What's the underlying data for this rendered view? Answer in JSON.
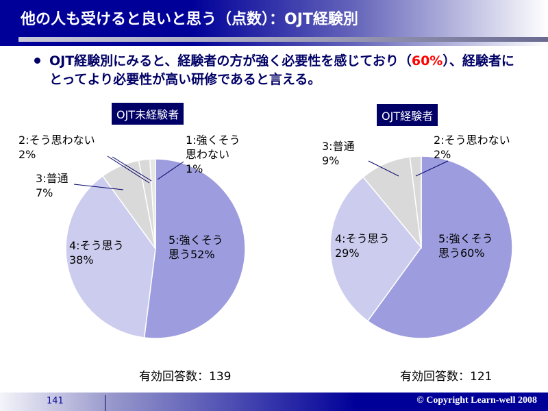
{
  "header": {
    "title": "他の人も受けると良いと思う（点数）：OJT経験別"
  },
  "summary": {
    "text_before": "OJT経験別にみると、経験者の方が強く必要性を感じており（",
    "highlight": "60%",
    "text_after": "）、経験者にとってより必要性が高い研修であると言える。",
    "highlight_color": "#ff0000"
  },
  "chart_data": [
    {
      "type": "pie",
      "title": "OJT未経験者",
      "start": "12 o'clock",
      "direction": "clockwise",
      "slices": [
        {
          "label": "5:強くそう思う",
          "value": 52,
          "text": "5:強くそう\n思う52%",
          "color": "#9c9cde"
        },
        {
          "label": "4:そう思う",
          "value": 38,
          "text": "4:そう思う\n38%",
          "color": "#ccccee"
        },
        {
          "label": "3:普通",
          "value": 7,
          "text": "3:普通\n7%",
          "color": "#d9d9d9"
        },
        {
          "label": "2:そう思わない",
          "value": 2,
          "text": "2:そう思わない\n2%",
          "color": "#d9d9d9"
        },
        {
          "label": "1:強くそう思わない",
          "value": 1,
          "text": "1:強くそう\n思わない\n1%",
          "color": "#e6e6e6"
        }
      ],
      "n_label": "有効回答数：139"
    },
    {
      "type": "pie",
      "title": "OJT経験者",
      "start": "12 o'clock",
      "direction": "clockwise",
      "slices": [
        {
          "label": "5:強くそう思う",
          "value": 60,
          "text": "5:強くそう\n思う60%",
          "color": "#9c9cde"
        },
        {
          "label": "4:そう思う",
          "value": 29,
          "text": "4:そう思う\n29%",
          "color": "#ccccee"
        },
        {
          "label": "3:普通",
          "value": 9,
          "text": "3:普通\n9%",
          "color": "#d9d9d9"
        },
        {
          "label": "2:そう思わない",
          "value": 2,
          "text": "2:そう思わない\n2%",
          "color": "#d9d9d9"
        }
      ],
      "n_label": "有効回答数：121"
    }
  ],
  "footer": {
    "page": "141",
    "copyright": "© Copyright Learn-well 2008"
  }
}
